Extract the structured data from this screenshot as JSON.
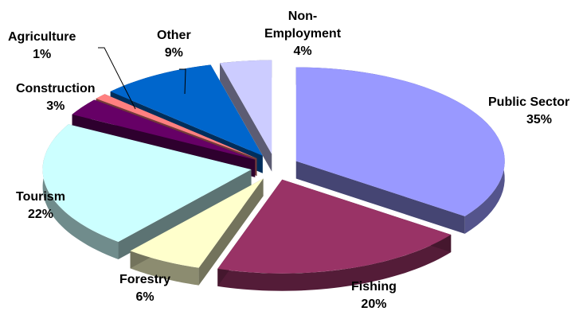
{
  "chart_data": {
    "type": "pie",
    "title": "",
    "slices": [
      {
        "label": "Public Sector",
        "value": 35,
        "value_label": "35%",
        "color": "#9999ff"
      },
      {
        "label": "Fishing",
        "value": 20,
        "value_label": "20%",
        "color": "#993366"
      },
      {
        "label": "Forestry",
        "value": 6,
        "value_label": "6%",
        "color": "#ffffcc"
      },
      {
        "label": "Tourism",
        "value": 22,
        "value_label": "22%",
        "color": "#ccffff"
      },
      {
        "label": "Construction",
        "value": 3,
        "value_label": "3%",
        "color": "#660066"
      },
      {
        "label": "Agriculture",
        "value": 1,
        "value_label": "1%",
        "color": "#ff8080"
      },
      {
        "label": "Other",
        "value": 9,
        "value_label": "9%",
        "color": "#0066cc"
      },
      {
        "label": "Non-Employment",
        "value": 4,
        "value_label": "4%",
        "color": "#ccccff"
      }
    ],
    "exploded": true,
    "three_d": true,
    "legend": "none"
  },
  "labels": {
    "public_sector": {
      "name": "Public Sector",
      "pct": "35%"
    },
    "fishing": {
      "name": "Fishing",
      "pct": "20%"
    },
    "forestry": {
      "name": "Forestry",
      "pct": "6%"
    },
    "tourism": {
      "name": "Tourism",
      "pct": "22%"
    },
    "construction": {
      "name": "Construction",
      "pct": "3%"
    },
    "agriculture": {
      "name": "Agriculture",
      "pct": "1%"
    },
    "other": {
      "name": "Other",
      "pct": "9%"
    },
    "non_employment": {
      "name_line1": "Non-",
      "name_line2": "Employment",
      "pct": "4%"
    }
  }
}
